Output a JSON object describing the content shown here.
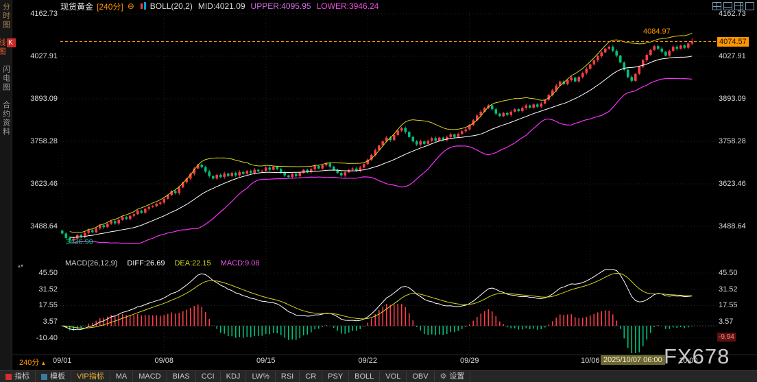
{
  "topbar": {
    "instrument": "现货黄金",
    "period": "[240分]",
    "boll_label": "BOLL(20,2)",
    "mid": "MID:4021.09",
    "upper": "UPPER:4095.95",
    "lower": "LOWER:3946.24",
    "layout_icons": [
      "layout-grid",
      "layout-split",
      "layout-multi",
      "layout-single"
    ]
  },
  "sidebar": {
    "items": [
      {
        "label": "分时图",
        "active": false
      },
      {
        "label": "K线图",
        "k": "K",
        "rest": "线图",
        "active": true
      },
      {
        "label": "闪电图",
        "active": false
      },
      {
        "label": "合约资料",
        "active": false
      }
    ]
  },
  "icons": {
    "minus_circle": "⊖",
    "gear": "⚙",
    "up_arrow": "▲",
    "pane_toggle": "▴▾"
  },
  "price_axis": {
    "ticks": [
      "4162.73",
      "4027.91",
      "3893.09",
      "3758.28",
      "3623.46",
      "3488.64"
    ]
  },
  "macd_axis": {
    "ticks": [
      "45.50",
      "31.52",
      "17.55",
      "3.57",
      "-10.40"
    ]
  },
  "badges": {
    "last_price": "4074.57",
    "macd_value": "-9.94"
  },
  "annotations": {
    "high": "4084.97",
    "low": "3436.99"
  },
  "macd_header": {
    "title": "MACD(26,12,9)",
    "diff": "DIFF:26.69",
    "dea": "DEA:22.15",
    "macd": "MACD:9.08"
  },
  "xaxis": {
    "period": "240分",
    "labels": [
      "09/01",
      "09/08",
      "09/15",
      "09/22",
      "09/29",
      "10/06"
    ],
    "highlight": "2025/10/07 06:00",
    "next_label": "10:00"
  },
  "watermark": "FX678",
  "toolbar": {
    "tabs": [
      {
        "label": "指标"
      },
      {
        "label": "模板"
      },
      {
        "label": "VIP指标"
      }
    ],
    "buttons": [
      "MA",
      "MACD",
      "BIAS",
      "CCI",
      "KDJ",
      "LW%",
      "RSI",
      "CR",
      "PSY",
      "BOLL",
      "VOL",
      "OBV"
    ],
    "settings": "设置"
  },
  "chart_data": {
    "type": "candlestick",
    "title": "现货黄金 240分 K线 + BOLL(20,2), 副图 MACD(26,12,9)",
    "x_labels": [
      "09/01",
      "09/08",
      "09/15",
      "09/22",
      "09/29",
      "10/06"
    ],
    "x_label_indices": [
      0,
      27,
      54,
      81,
      108,
      140
    ],
    "y_ticks": [
      4162.73,
      4027.91,
      3893.09,
      3758.28,
      3623.46,
      3488.64
    ],
    "price_range_estimate": [
      3390,
      4165
    ],
    "first_open": 3475,
    "closes": [
      3466,
      3452,
      3444,
      3450,
      3461,
      3455,
      3468,
      3476,
      3470,
      3482,
      3492,
      3486,
      3497,
      3505,
      3498,
      3509,
      3518,
      3512,
      3522,
      3527,
      3538,
      3532,
      3544,
      3550,
      3553,
      3560,
      3564,
      3576,
      3588,
      3600,
      3594,
      3612,
      3628,
      3640,
      3655,
      3672,
      3684,
      3676,
      3662,
      3648,
      3640,
      3652,
      3645,
      3656,
      3648,
      3658,
      3650,
      3661,
      3655,
      3664,
      3658,
      3668,
      3663,
      3665,
      3675,
      3668,
      3678,
      3670,
      3660,
      3650,
      3645,
      3655,
      3648,
      3658,
      3668,
      3660,
      3670,
      3680,
      3672,
      3682,
      3688,
      3678,
      3668,
      3658,
      3650,
      3660,
      3668,
      3672,
      3665,
      3675,
      3686,
      3700,
      3715,
      3730,
      3745,
      3758,
      3770,
      3762,
      3778,
      3792,
      3800,
      3788,
      3772,
      3758,
      3748,
      3758,
      3750,
      3760,
      3768,
      3760,
      3770,
      3762,
      3772,
      3780,
      3772,
      3782,
      3790,
      3796,
      3810,
      3825,
      3840,
      3852,
      3864,
      3872,
      3860,
      3846,
      3838,
      3848,
      3842,
      3852,
      3860,
      3854,
      3864,
      3872,
      3865,
      3875,
      3868,
      3878,
      3890,
      3905,
      3920,
      3935,
      3948,
      3940,
      3952,
      3960,
      3948,
      3962,
      3975,
      3988,
      4002,
      4015,
      4028,
      4040,
      4052,
      4058,
      4045,
      4030,
      4008,
      3985,
      3962,
      3950,
      3972,
      3995,
      4015,
      4032,
      4048,
      4060,
      4052,
      4042,
      4030,
      4045,
      4058,
      4052,
      4062,
      4055,
      4068,
      4074.57
    ],
    "low_point": {
      "index": 2,
      "value": 3436.99
    },
    "high_point": {
      "index": 167,
      "value": 4084.97
    },
    "last_price": 4074.57,
    "boll": {
      "period": 20,
      "stdev_mult": 2,
      "mid": 4021.09,
      "upper": 4095.95,
      "lower": 3946.24
    },
    "macd": {
      "fast": 26,
      "slow": 12,
      "signal": 9,
      "diff": 26.69,
      "dea": 22.15,
      "value": 9.08,
      "y_ticks": [
        45.5,
        31.52,
        17.55,
        3.57,
        -10.4
      ],
      "range_estimate": [
        -23.5,
        48.5
      ]
    },
    "colors": {
      "up": "#ff3c46",
      "down": "#00c07a",
      "boll_upper": "#d6d61e",
      "boll_mid": "#ffffff",
      "boll_lower": "#f531f5",
      "diff_line": "#ffffff",
      "dea_line": "#d6d61e",
      "hist_pos": "#ff3c46",
      "hist_neg": "#00c07a",
      "price_line": "#ff9500"
    }
  }
}
